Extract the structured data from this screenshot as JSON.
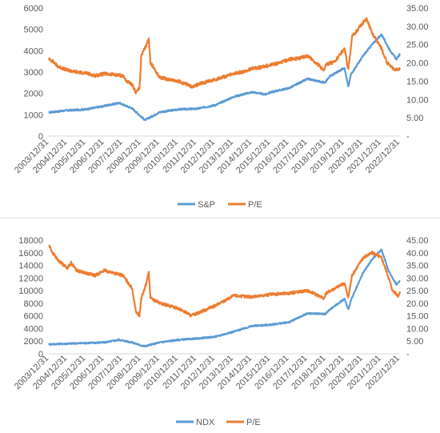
{
  "chart_data": [
    {
      "type": "line",
      "title": "",
      "x_tick_labels": [
        "2003/12/31",
        "2004/12/31",
        "2005/12/31",
        "2006/12/31",
        "2007/12/31",
        "2008/12/31",
        "2009/12/31",
        "2010/12/31",
        "2011/12/31",
        "2012/12/31",
        "2013/12/31",
        "2014/12/31",
        "2015/12/31",
        "2016/12/31",
        "2017/12/31",
        "2018/12/31",
        "2019/12/31",
        "2020/12/31",
        "2021/12/31",
        "2022/12/31"
      ],
      "x_range": [
        2003.95,
        2023.0
      ],
      "y_left": {
        "ticks": [
          "0",
          "1000",
          "2000",
          "3000",
          "4000",
          "5000",
          "6000"
        ],
        "range": [
          0,
          6000
        ]
      },
      "y_right": {
        "ticks": [
          "-",
          "5.00",
          "10.00",
          "15.00",
          "20.00",
          "25.00",
          "30.00",
          "35.00"
        ],
        "range": [
          0,
          35
        ]
      },
      "grid": false,
      "legend_position": "bottom",
      "series": [
        {
          "name": "S&P",
          "axis": "left",
          "color": "#5b9bd5",
          "x": [
            2004.0,
            2005.0,
            2006.0,
            2007.0,
            2007.5,
            2007.8,
            2008.5,
            2009.0,
            2009.2,
            2010.0,
            2011.0,
            2012.0,
            2013.0,
            2014.0,
            2015.0,
            2015.7,
            2016.0,
            2017.0,
            2018.0,
            2018.95,
            2019.2,
            2020.0,
            2020.2,
            2020.35,
            2021.0,
            2021.5,
            2022.0,
            2022.4,
            2022.8,
            2023.0
          ],
          "y": [
            1110,
            1200,
            1250,
            1410,
            1500,
            1550,
            1300,
            900,
            750,
            1120,
            1250,
            1280,
            1450,
            1840,
            2060,
            1950,
            2050,
            2250,
            2680,
            2500,
            2800,
            3200,
            2300,
            2900,
            3750,
            4300,
            4760,
            4100,
            3600,
            3850
          ]
        },
        {
          "name": "P/E",
          "axis": "right",
          "color": "#ed7d31",
          "x": [
            2004.0,
            2004.2,
            2004.5,
            2005.0,
            2005.5,
            2006.0,
            2006.5,
            2007.0,
            2007.5,
            2008.0,
            2008.2,
            2008.5,
            2008.7,
            2008.9,
            2009.0,
            2009.2,
            2009.4,
            2009.5,
            2010.0,
            2010.5,
            2011.0,
            2011.5,
            2011.7,
            2012.0,
            2013.0,
            2014.0,
            2014.5,
            2015.0,
            2015.5,
            2016.0,
            2016.5,
            2017.0,
            2017.5,
            2018.0,
            2018.9,
            2019.0,
            2019.5,
            2020.0,
            2020.2,
            2020.4,
            2020.7,
            2021.0,
            2021.2,
            2021.5,
            2022.0,
            2022.3,
            2022.6,
            2022.9,
            2023.0
          ],
          "y": [
            21.0,
            20.5,
            19.0,
            18.0,
            17.5,
            17.2,
            16.5,
            17.0,
            16.8,
            16.5,
            15.0,
            14.0,
            12.0,
            13.0,
            22.0,
            24.0,
            26.5,
            20.0,
            16.0,
            15.5,
            15.0,
            14.0,
            13.5,
            14.0,
            15.5,
            17.0,
            17.5,
            18.5,
            18.8,
            19.5,
            20.0,
            21.0,
            21.2,
            22.0,
            18.0,
            19.5,
            20.5,
            24.0,
            18.0,
            27.0,
            29.0,
            31.0,
            32.0,
            28.0,
            24.0,
            20.0,
            18.5,
            18.0,
            18.5
          ]
        }
      ]
    },
    {
      "type": "line",
      "title": "",
      "x_tick_labels": [
        "2003/12/31",
        "2004/12/31",
        "2005/12/31",
        "2006/12/31",
        "2007/12/31",
        "2008/12/31",
        "2009/12/31",
        "2010/12/31",
        "2011/12/31",
        "2012/12/31",
        "2013/12/31",
        "2014/12/31",
        "2015/12/31",
        "2016/12/31",
        "2017/12/31",
        "2018/12/31",
        "2019/12/31",
        "2020/12/31",
        "2021/12/31",
        "2022/12/31"
      ],
      "x_range": [
        2003.95,
        2023.0
      ],
      "y_left": {
        "ticks": [
          "0",
          "2000",
          "4000",
          "6000",
          "8000",
          "10000",
          "12000",
          "14000",
          "16000",
          "18000"
        ],
        "range": [
          0,
          18000
        ]
      },
      "y_right": {
        "ticks": [
          "-",
          "5.00",
          "10.00",
          "15.00",
          "20.00",
          "25.00",
          "30.00",
          "35.00",
          "40.00",
          "45.00"
        ],
        "range": [
          0,
          45
        ]
      },
      "grid": false,
      "legend_position": "bottom",
      "series": [
        {
          "name": "NDX",
          "axis": "left",
          "color": "#5b9bd5",
          "x": [
            2004.0,
            2005.0,
            2006.0,
            2007.0,
            2007.8,
            2008.5,
            2009.0,
            2009.2,
            2010.0,
            2011.0,
            2012.0,
            2013.0,
            2014.0,
            2015.0,
            2016.0,
            2017.0,
            2018.0,
            2018.95,
            2019.2,
            2020.0,
            2020.2,
            2020.35,
            2021.0,
            2021.5,
            2022.0,
            2022.4,
            2022.8,
            2023.0
          ],
          "y": [
            1500,
            1600,
            1700,
            1800,
            2200,
            1800,
            1300,
            1200,
            1800,
            2200,
            2400,
            2700,
            3500,
            4400,
            4600,
            5000,
            6400,
            6300,
            7000,
            8700,
            7000,
            8500,
            12800,
            15000,
            16500,
            13000,
            11000,
            11500
          ]
        },
        {
          "name": "P/E",
          "axis": "right",
          "color": "#ed7d31",
          "x": [
            2004.0,
            2004.2,
            2004.5,
            2005.0,
            2005.2,
            2005.5,
            2006.0,
            2006.5,
            2007.0,
            2007.5,
            2008.0,
            2008.5,
            2008.7,
            2008.9,
            2009.0,
            2009.2,
            2009.4,
            2009.5,
            2010.0,
            2010.5,
            2011.0,
            2011.5,
            2011.7,
            2012.0,
            2013.0,
            2014.0,
            2015.0,
            2016.0,
            2017.0,
            2018.0,
            2018.9,
            2019.0,
            2019.5,
            2020.0,
            2020.2,
            2020.4,
            2021.0,
            2021.5,
            2022.0,
            2022.3,
            2022.6,
            2022.9,
            2023.0
          ],
          "y": [
            43.0,
            40.0,
            37.0,
            34.0,
            36.0,
            33.0,
            32.0,
            31.0,
            33.0,
            32.0,
            31.0,
            26.0,
            17.0,
            15.0,
            22.0,
            26.0,
            32.0,
            22.0,
            20.0,
            19.0,
            18.0,
            16.0,
            15.0,
            16.0,
            19.0,
            23.0,
            22.5,
            23.5,
            24.0,
            25.0,
            22.0,
            24.0,
            26.0,
            28.0,
            22.0,
            31.0,
            38.0,
            40.0,
            38.0,
            32.0,
            25.0,
            23.0,
            24.0
          ]
        }
      ]
    }
  ]
}
